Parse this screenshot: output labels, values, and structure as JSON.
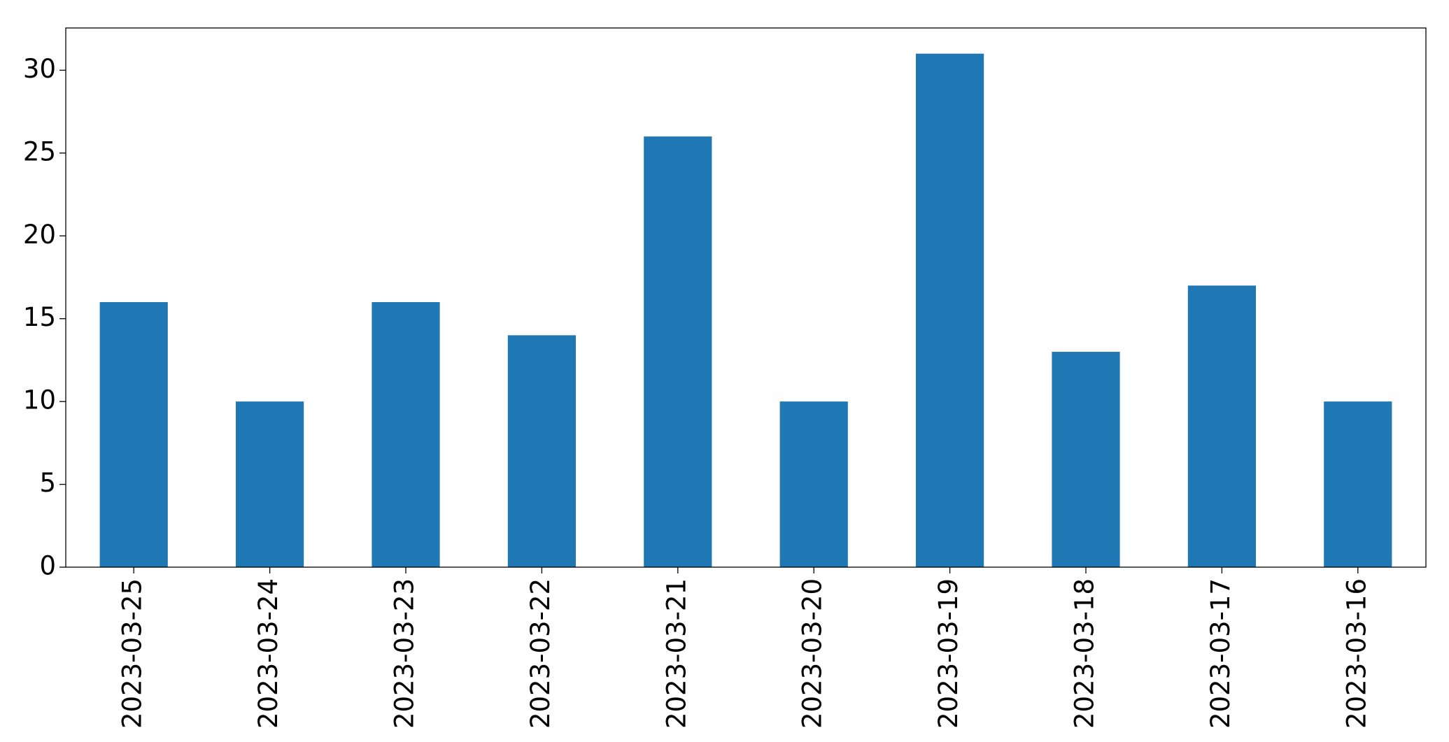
{
  "chart_data": {
    "type": "bar",
    "categories": [
      "2023-03-25",
      "2023-03-24",
      "2023-03-23",
      "2023-03-22",
      "2023-03-21",
      "2023-03-20",
      "2023-03-19",
      "2023-03-18",
      "2023-03-17",
      "2023-03-16"
    ],
    "values": [
      16,
      10,
      16,
      14,
      26,
      10,
      31,
      13,
      17,
      10
    ],
    "color": "#1f77b4",
    "ylim": [
      0,
      32.55
    ],
    "yticks": [
      0,
      5,
      10,
      15,
      20,
      25,
      30
    ],
    "grid": false
  }
}
